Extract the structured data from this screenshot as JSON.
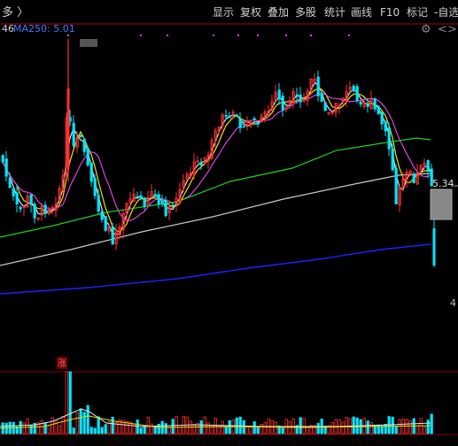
{
  "toolbar": {
    "left_label": "多 〉",
    "buttons": [
      "显示",
      "复权",
      "叠加",
      "多股",
      "统计",
      "画线",
      "F10",
      "标记",
      "-自选"
    ]
  },
  "indicator_line": {
    "prefix": "46",
    "ma250_label": "MA250: 5.01",
    "gear": "⚙"
  },
  "price_marker": {
    "value": "5.34"
  },
  "right_edge_digit": "4",
  "volume_panel": {
    "limit_up_tag": "涨"
  },
  "colors": {
    "up": "#ff3030",
    "down": "#00e5ff",
    "ma_white": "#e6e6e6",
    "ma_yellow": "#f0e000",
    "ma_magenta": "#e040e0",
    "ma_green": "#20d020",
    "ma_gray": "#c8c8c8",
    "ma_blue": "#2020ff",
    "toolbar_text": "#d0d0d0",
    "ma250_text": "#3a7bff"
  },
  "chart_data": {
    "type": "candlestick",
    "price_ticks_visible": [
      "5.34",
      "4"
    ],
    "ma_series": [
      {
        "name": "MA250",
        "value": 5.01
      }
    ],
    "volume_panel": true
  }
}
